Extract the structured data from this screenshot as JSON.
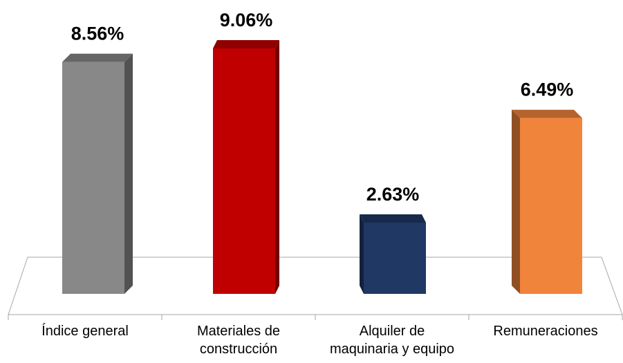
{
  "chart_data": {
    "type": "bar3d",
    "categories": [
      "Índice general",
      "Materiales de construcción",
      "Alquiler de maquinaria y equipo",
      "Remuneraciones"
    ],
    "values": [
      8.56,
      9.06,
      2.63,
      6.49
    ],
    "value_labels": [
      "8.56%",
      "9.06%",
      "2.63%",
      "6.49%"
    ],
    "colors": [
      "#888888",
      "#c00000",
      "#1f3864",
      "#f0843a"
    ]
  }
}
